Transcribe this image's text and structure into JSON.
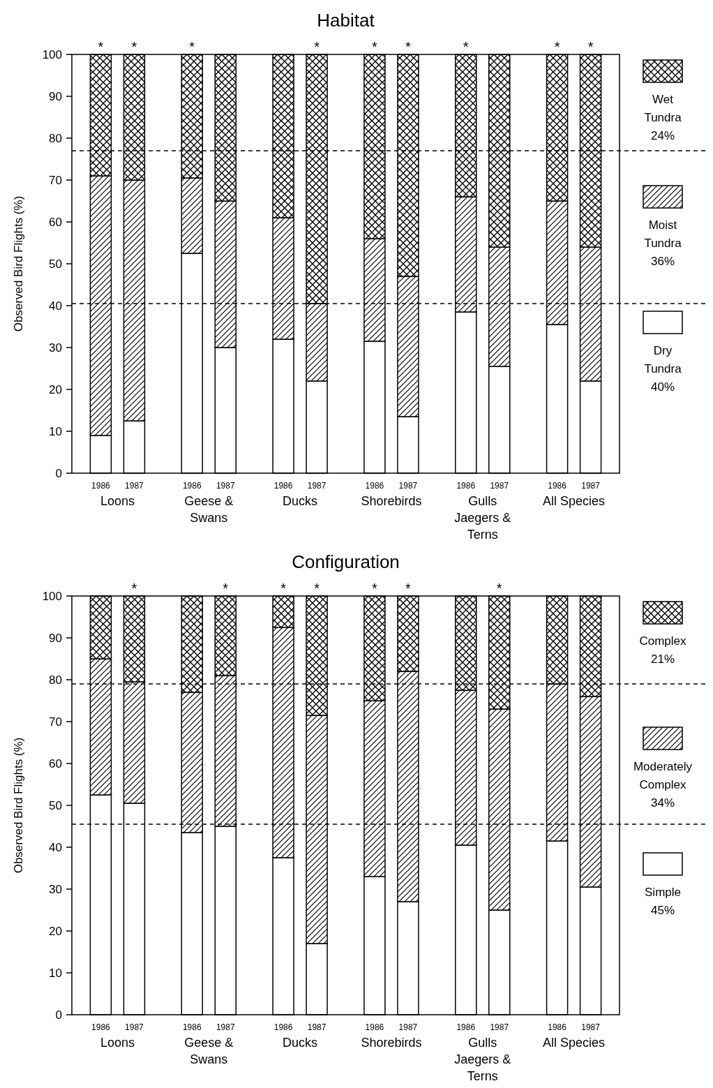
{
  "chart_data": [
    {
      "type": "bar",
      "title": "Habitat",
      "ylabel": "Observed Bird Flights (%)",
      "stacked": true,
      "legend": "right",
      "ylim": [
        0,
        100
      ],
      "yticks": [
        0,
        10,
        20,
        30,
        40,
        50,
        60,
        70,
        80,
        90,
        100
      ],
      "categories": [
        "1986",
        "1987",
        "1986",
        "1987",
        "1986",
        "1987",
        "1986",
        "1987",
        "1986",
        "1987",
        "1986",
        "1987"
      ],
      "annotations": [
        "Loons",
        "Geese & Swans",
        "Ducks",
        "Shorebirds",
        "Gulls Jaegers & Terns",
        "All Species"
      ],
      "ref_lines": [
        {
          "axis": "y",
          "value": 77,
          "line_style": "dashed",
          "color": "#000000"
        },
        {
          "axis": "y",
          "value": 40.5,
          "line_style": "dashed",
          "color": "#000000"
        }
      ],
      "series": [
        {
          "name": "Dry Tundra 40%",
          "color": "#ffffff",
          "values": [
            9,
            12.5,
            52.5,
            30,
            32,
            22,
            31.5,
            13.5,
            38.5,
            25.5,
            35.5,
            22
          ]
        },
        {
          "name": "Moist Tundra 36%",
          "color": "#000000",
          "values": [
            62,
            57.5,
            18,
            35,
            29,
            18.5,
            24.5,
            33.5,
            27.5,
            28.5,
            29.5,
            32
          ]
        },
        {
          "name": "Wet Tundra 24%",
          "color": "#000000",
          "values": [
            29,
            30,
            29.5,
            35,
            39,
            59.5,
            44,
            53,
            34,
            46,
            35,
            46
          ],
          "value_labels": [
            "*",
            "*",
            "*",
            null,
            null,
            "*",
            "*",
            "*",
            "*",
            null,
            "*",
            "*"
          ]
        }
      ]
    },
    {
      "type": "bar",
      "title": "Configuration",
      "ylabel": "Observed Bird Flights (%)",
      "stacked": true,
      "legend": "right",
      "ylim": [
        0,
        100
      ],
      "yticks": [
        0,
        10,
        20,
        30,
        40,
        50,
        60,
        70,
        80,
        90,
        100
      ],
      "categories": [
        "1986",
        "1987",
        "1986",
        "1987",
        "1986",
        "1987",
        "1986",
        "1987",
        "1986",
        "1987",
        "1986",
        "1987"
      ],
      "annotations": [
        "Loons",
        "Geese & Swans",
        "Ducks",
        "Shorebirds",
        "Gulls Jaegers & Terns",
        "All Species"
      ],
      "ref_lines": [
        {
          "axis": "y",
          "value": 79,
          "line_style": "dashed",
          "color": "#000000"
        },
        {
          "axis": "y",
          "value": 45.5,
          "line_style": "dashed",
          "color": "#000000"
        }
      ],
      "series": [
        {
          "name": "Simple 45%",
          "color": "#ffffff",
          "values": [
            52.5,
            50.5,
            43.5,
            45,
            37.5,
            17,
            33,
            27,
            40.5,
            25,
            41.5,
            30.5
          ]
        },
        {
          "name": "Moderately Complex 34%",
          "color": "#000000",
          "values": [
            32.5,
            29,
            33.5,
            36,
            55,
            54.5,
            42,
            55,
            37,
            48,
            37.5,
            45.5
          ]
        },
        {
          "name": "Complex 21%",
          "color": "#000000",
          "values": [
            15,
            20.5,
            23,
            19,
            7.5,
            28.5,
            25,
            18,
            22.5,
            27,
            21,
            24
          ],
          "value_labels": [
            null,
            "*",
            null,
            "*",
            "*",
            "*",
            "*",
            "*",
            null,
            "*",
            null,
            null
          ]
        }
      ]
    }
  ]
}
